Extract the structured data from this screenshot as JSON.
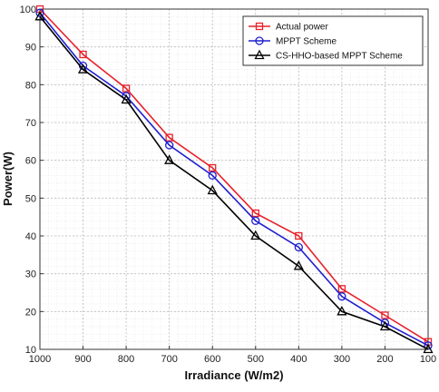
{
  "chart_data": {
    "type": "line",
    "xlabel": "Irradiance (W/m2)",
    "ylabel": "Power(W)",
    "x": [
      1000,
      900,
      800,
      700,
      600,
      500,
      400,
      300,
      200,
      100
    ],
    "xlim": [
      1000,
      100
    ],
    "ylim": [
      10,
      100
    ],
    "xticks": [
      "1000",
      "900",
      "800",
      "700",
      "600",
      "500",
      "400",
      "300",
      "200",
      "100"
    ],
    "yticks": [
      "10",
      "20",
      "30",
      "40",
      "50",
      "60",
      "70",
      "80",
      "90",
      "100"
    ],
    "grid": true,
    "legend_position": "top-right",
    "series": [
      {
        "name": "Actual power",
        "color": "#e8202a",
        "marker": "square",
        "values": [
          100,
          88,
          79,
          66,
          58,
          46,
          40,
          26,
          19,
          12
        ]
      },
      {
        "name": "MPPT Scheme",
        "color": "#1f1fd0",
        "marker": "circle",
        "values": [
          99,
          85,
          77,
          64,
          56,
          44,
          37,
          24,
          17,
          11
        ]
      },
      {
        "name": "CS-HHO-based MPPT Scheme",
        "color": "#000000",
        "marker": "triangle",
        "values": [
          98,
          84,
          76,
          60,
          52,
          40,
          32,
          20,
          16,
          10
        ]
      }
    ]
  }
}
